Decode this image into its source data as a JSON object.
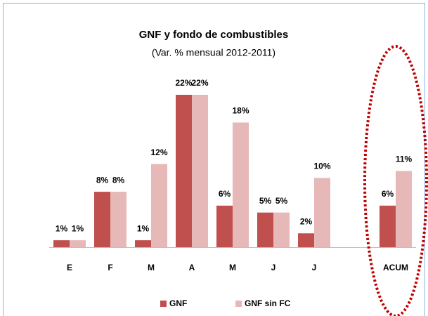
{
  "chart_data": {
    "type": "bar",
    "title": "GNF y fondo de combustibles",
    "subtitle": "(Var. % mensual 2012-2011)",
    "categories": [
      "E",
      "F",
      "M",
      "A",
      "M",
      "J",
      "J",
      null,
      "ACUM"
    ],
    "series": [
      {
        "name": "GNF",
        "color": "#c0504d",
        "values": [
          1,
          8,
          1,
          22,
          6,
          5,
          2,
          null,
          6
        ],
        "value_labels": [
          "1%",
          "8%",
          "1%",
          "22%",
          "6%",
          "5%",
          "2%",
          null,
          "6%"
        ]
      },
      {
        "name": "GNF sin FC",
        "color": "#e6b9b8",
        "values": [
          1,
          8,
          12,
          22,
          18,
          5,
          10,
          null,
          11
        ],
        "value_labels": [
          "1%",
          "8%",
          "12%",
          "22%",
          "18%",
          "5%",
          "10%",
          null,
          "11%"
        ]
      }
    ],
    "legend": "bottom"
  }
}
